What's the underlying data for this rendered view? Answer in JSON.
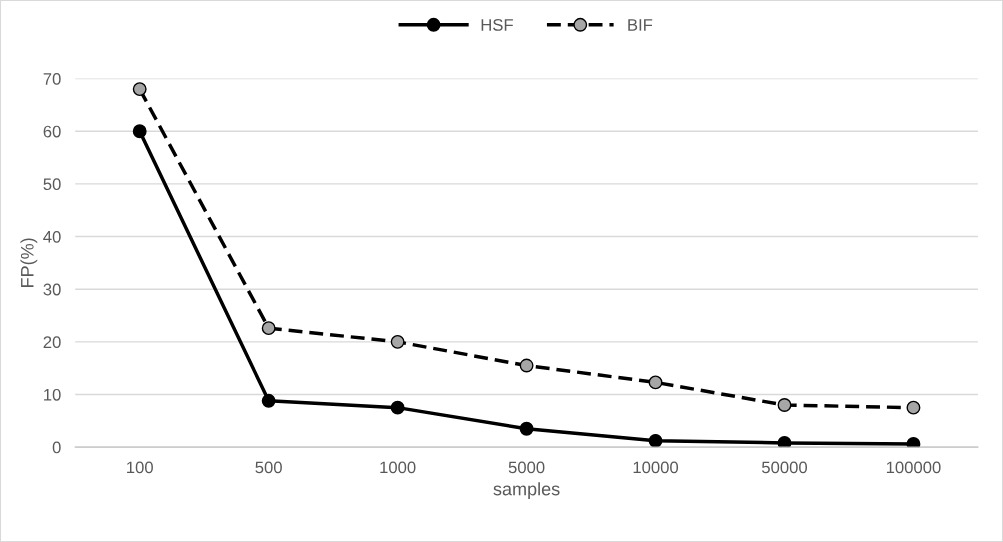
{
  "chart_data": {
    "type": "line",
    "xlabel": "samples",
    "ylabel": "FP(%)",
    "categories": [
      "100",
      "500",
      "1000",
      "5000",
      "10000",
      "50000",
      "100000"
    ],
    "series": [
      {
        "name": "HSF",
        "color": "#000000",
        "line_style": "solid",
        "values": [
          60,
          8.8,
          7.5,
          3.5,
          1.2,
          0.8,
          0.6
        ]
      },
      {
        "name": "BIF",
        "color": "#000000",
        "line_style": "dashed",
        "values": [
          68,
          22.6,
          20,
          15.5,
          12.3,
          8,
          7.5
        ]
      }
    ],
    "ylim": [
      0,
      70
    ],
    "yticks": [
      0,
      10,
      20,
      30,
      40,
      50,
      60,
      70
    ],
    "grid": "y",
    "legend": "top",
    "marker": "circle"
  }
}
